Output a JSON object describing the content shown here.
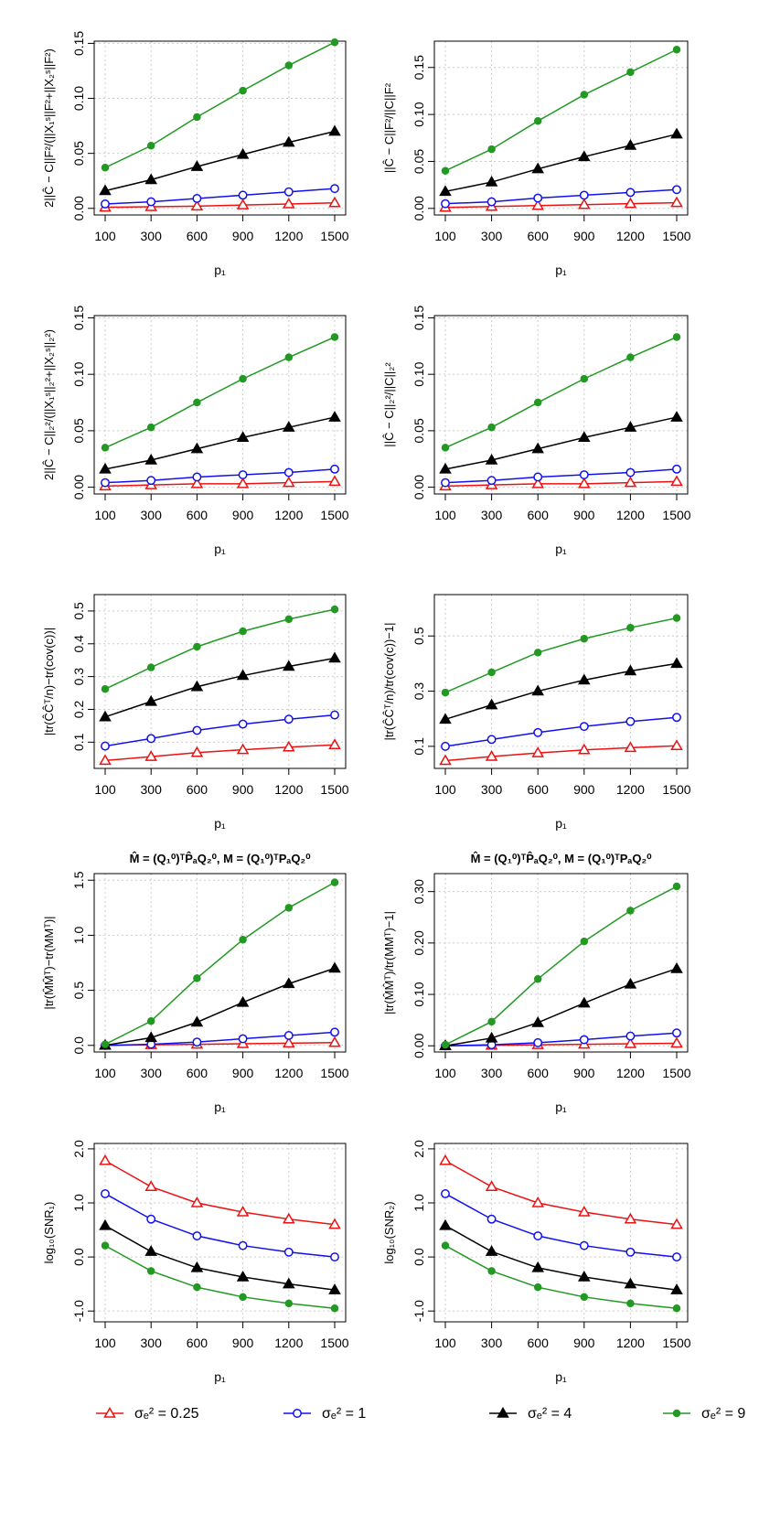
{
  "chart_data": [
    {
      "type": "line",
      "ylabel": "2||Ĉ − C||F²/(||X₁ˢ||F²+||X₂ˢ||F²)",
      "xlabel": "p₁",
      "categories": [
        "100",
        "300",
        "600",
        "900",
        "1200",
        "1500"
      ],
      "ylim": [
        -0.006,
        0.152
      ],
      "yticks": [
        {
          "value": 0,
          "label": "0.00"
        },
        {
          "value": 0.05,
          "label": "0.05"
        },
        {
          "value": 0.1,
          "label": "0.10"
        },
        {
          "value": 0.15,
          "label": "0.15"
        }
      ],
      "grid": true,
      "series": [
        {
          "values": [
            0.001,
            0.0015,
            0.002,
            0.003,
            0.004,
            0.005
          ]
        },
        {
          "values": [
            0.004,
            0.006,
            0.009,
            0.012,
            0.015,
            0.018
          ]
        },
        {
          "values": [
            0.016,
            0.026,
            0.038,
            0.049,
            0.06,
            0.07
          ]
        },
        {
          "values": [
            0.037,
            0.057,
            0.083,
            0.107,
            0.13,
            0.151
          ]
        }
      ]
    },
    {
      "type": "line",
      "ylabel": "||Ĉ − C||F²/||C||F²",
      "xlabel": "p₁",
      "categories": [
        "100",
        "300",
        "600",
        "900",
        "1200",
        "1500"
      ],
      "ylim": [
        -0.007,
        0.178
      ],
      "yticks": [
        {
          "value": 0,
          "label": "0.00"
        },
        {
          "value": 0.05,
          "label": "0.05"
        },
        {
          "value": 0.1,
          "label": "0.10"
        },
        {
          "value": 0.15,
          "label": "0.15"
        }
      ],
      "grid": true,
      "series": [
        {
          "values": [
            0.001,
            0.002,
            0.003,
            0.004,
            0.005,
            0.006
          ]
        },
        {
          "values": [
            0.005,
            0.007,
            0.011,
            0.014,
            0.017,
            0.02
          ]
        },
        {
          "values": [
            0.018,
            0.028,
            0.042,
            0.055,
            0.067,
            0.079
          ]
        },
        {
          "values": [
            0.04,
            0.063,
            0.093,
            0.121,
            0.145,
            0.169
          ]
        }
      ]
    },
    {
      "type": "line",
      "ylabel": "2||Ĉ − C||₂²/(||X₁ˢ||₂²+||X₂ˢ||₂²)",
      "xlabel": "p₁",
      "categories": [
        "100",
        "300",
        "600",
        "900",
        "1200",
        "1500"
      ],
      "ylim": [
        -0.006,
        0.152
      ],
      "yticks": [
        {
          "value": 0,
          "label": "0.00"
        },
        {
          "value": 0.05,
          "label": "0.05"
        },
        {
          "value": 0.1,
          "label": "0.10"
        },
        {
          "value": 0.15,
          "label": "0.15"
        }
      ],
      "grid": true,
      "series": [
        {
          "values": [
            0.001,
            0.002,
            0.003,
            0.003,
            0.004,
            0.005
          ]
        },
        {
          "values": [
            0.004,
            0.006,
            0.009,
            0.011,
            0.013,
            0.016
          ]
        },
        {
          "values": [
            0.016,
            0.024,
            0.034,
            0.044,
            0.053,
            0.062
          ]
        },
        {
          "values": [
            0.035,
            0.053,
            0.075,
            0.096,
            0.115,
            0.133
          ]
        }
      ]
    },
    {
      "type": "line",
      "ylabel": "||Ĉ − C||₂²/||C||₂²",
      "xlabel": "p₁",
      "categories": [
        "100",
        "300",
        "600",
        "900",
        "1200",
        "1500"
      ],
      "ylim": [
        -0.006,
        0.152
      ],
      "yticks": [
        {
          "value": 0,
          "label": "0.00"
        },
        {
          "value": 0.05,
          "label": "0.05"
        },
        {
          "value": 0.1,
          "label": "0.10"
        },
        {
          "value": 0.15,
          "label": "0.15"
        }
      ],
      "grid": true,
      "series": [
        {
          "values": [
            0.001,
            0.002,
            0.003,
            0.003,
            0.004,
            0.005
          ]
        },
        {
          "values": [
            0.004,
            0.006,
            0.009,
            0.011,
            0.013,
            0.016
          ]
        },
        {
          "values": [
            0.016,
            0.024,
            0.034,
            0.044,
            0.053,
            0.062
          ]
        },
        {
          "values": [
            0.035,
            0.053,
            0.075,
            0.096,
            0.115,
            0.133
          ]
        }
      ]
    },
    {
      "type": "line",
      "ylabel": "|tr(ĈĈᵀ/n)−tr(cov(c))|",
      "xlabel": "p₁",
      "categories": [
        "100",
        "300",
        "600",
        "900",
        "1200",
        "1500"
      ],
      "ylim": [
        0.02,
        0.55
      ],
      "yticks": [
        0.1,
        0.2,
        0.3,
        0.4,
        0.5
      ],
      "grid": true,
      "series": [
        {
          "values": [
            0.044,
            0.056,
            0.068,
            0.077,
            0.085,
            0.092
          ]
        },
        {
          "values": [
            0.088,
            0.111,
            0.136,
            0.155,
            0.17,
            0.183
          ]
        },
        {
          "values": [
            0.177,
            0.224,
            0.269,
            0.303,
            0.331,
            0.356
          ]
        },
        {
          "values": [
            0.262,
            0.328,
            0.391,
            0.438,
            0.475,
            0.505
          ]
        }
      ]
    },
    {
      "type": "line",
      "ylabel": "|tr(ĈĈᵀ/n)/tr(cov(c))−1|",
      "xlabel": "p₁",
      "categories": [
        "100",
        "300",
        "600",
        "900",
        "1200",
        "1500"
      ],
      "ylim": [
        0.02,
        0.65
      ],
      "yticks": [
        0.1,
        0.3,
        0.5
      ],
      "grid": true,
      "series": [
        {
          "values": [
            0.048,
            0.063,
            0.076,
            0.087,
            0.095,
            0.102
          ]
        },
        {
          "values": [
            0.1,
            0.125,
            0.15,
            0.172,
            0.19,
            0.205
          ]
        },
        {
          "values": [
            0.198,
            0.25,
            0.3,
            0.34,
            0.373,
            0.4
          ]
        },
        {
          "values": [
            0.295,
            0.368,
            0.44,
            0.49,
            0.53,
            0.565
          ]
        }
      ]
    },
    {
      "type": "line",
      "title": "M̂ = (Q₁⁰)ᵀP̂ₐQ₂⁰,  M = (Q₁⁰)ᵀPₐQ₂⁰",
      "ylabel": "|tr(M̂M̂ᵀ)−tr(MMᵀ)|",
      "xlabel": "p₁",
      "categories": [
        "100",
        "300",
        "600",
        "900",
        "1200",
        "1500"
      ],
      "ylim": [
        -0.06,
        1.56
      ],
      "yticks": [
        {
          "value": 0,
          "label": "0.0"
        },
        {
          "value": 0.5,
          "label": "0.5"
        },
        {
          "value": 1,
          "label": "1.0"
        },
        {
          "value": 1.5,
          "label": "1.5"
        }
      ],
      "grid": true,
      "series": [
        {
          "values": [
            0,
            0.005,
            0.01,
            0.015,
            0.02,
            0.025
          ]
        },
        {
          "values": [
            0,
            0.01,
            0.03,
            0.06,
            0.09,
            0.12
          ]
        },
        {
          "values": [
            0,
            0.07,
            0.21,
            0.39,
            0.56,
            0.7
          ]
        },
        {
          "values": [
            0.01,
            0.22,
            0.61,
            0.96,
            1.25,
            1.48
          ]
        }
      ]
    },
    {
      "type": "line",
      "title": "M̂ = (Q₁⁰)ᵀP̂ₐQ₂⁰,  M = (Q₁⁰)ᵀPₐQ₂⁰",
      "ylabel": "|tr(M̂M̂ᵀ)/tr(MMᵀ)−1|",
      "xlabel": "p₁",
      "categories": [
        "100",
        "300",
        "600",
        "900",
        "1200",
        "1500"
      ],
      "ylim": [
        -0.012,
        0.335
      ],
      "yticks": [
        {
          "value": 0,
          "label": "0.00"
        },
        {
          "value": 0.1,
          "label": "0.10"
        },
        {
          "value": 0.2,
          "label": "0.20"
        },
        {
          "value": 0.3,
          "label": "0.30"
        }
      ],
      "grid": true,
      "series": [
        {
          "values": [
            0,
            0.001,
            0.002,
            0.003,
            0.004,
            0.005
          ]
        },
        {
          "values": [
            0,
            0.002,
            0.006,
            0.012,
            0.019,
            0.025
          ]
        },
        {
          "values": [
            0,
            0.015,
            0.045,
            0.083,
            0.12,
            0.15
          ]
        },
        {
          "values": [
            0.002,
            0.047,
            0.13,
            0.203,
            0.263,
            0.31
          ]
        }
      ]
    },
    {
      "type": "line",
      "ylabel": "log₁₀(SNR₁)",
      "xlabel": "p₁",
      "categories": [
        "100",
        "300",
        "600",
        "900",
        "1200",
        "1500"
      ],
      "ylim": [
        -1.2,
        2.1
      ],
      "yticks": [
        {
          "value": -1,
          "label": "-1.0"
        },
        {
          "value": 0,
          "label": "0.0"
        },
        {
          "value": 1,
          "label": "1.0"
        },
        {
          "value": 2,
          "label": "2.0"
        }
      ],
      "grid": true,
      "series": [
        {
          "values": [
            1.78,
            1.3,
            1.0,
            0.83,
            0.7,
            0.6
          ]
        },
        {
          "values": [
            1.17,
            0.7,
            0.39,
            0.21,
            0.09,
            0.0
          ]
        },
        {
          "values": [
            0.58,
            0.1,
            -0.2,
            -0.37,
            -0.5,
            -0.61
          ]
        },
        {
          "values": [
            0.21,
            -0.26,
            -0.56,
            -0.74,
            -0.86,
            -0.95
          ]
        }
      ]
    },
    {
      "type": "line",
      "ylabel": "log₁₀(SNR₂)",
      "xlabel": "p₁",
      "categories": [
        "100",
        "300",
        "600",
        "900",
        "1200",
        "1500"
      ],
      "ylim": [
        -1.2,
        2.1
      ],
      "yticks": [
        {
          "value": -1,
          "label": "-1.0"
        },
        {
          "value": 0,
          "label": "0.0"
        },
        {
          "value": 1,
          "label": "1.0"
        },
        {
          "value": 2,
          "label": "2.0"
        }
      ],
      "grid": true,
      "series": [
        {
          "values": [
            1.78,
            1.3,
            1.0,
            0.83,
            0.7,
            0.6
          ]
        },
        {
          "values": [
            1.17,
            0.7,
            0.39,
            0.21,
            0.09,
            0.0
          ]
        },
        {
          "values": [
            0.58,
            0.1,
            -0.2,
            -0.37,
            -0.5,
            -0.61
          ]
        },
        {
          "values": [
            0.21,
            -0.26,
            -0.56,
            -0.74,
            -0.86,
            -0.95
          ]
        }
      ]
    }
  ],
  "legend": [
    {
      "name": "σₑ² = 0.25",
      "color": "#ee1111",
      "marker": "open-triangle"
    },
    {
      "name": "σₑ² = 1",
      "color": "#1111ee",
      "marker": "open-circle"
    },
    {
      "name": "σₑ² = 4",
      "color": "#000000",
      "marker": "filled-triangle"
    },
    {
      "name": "σₑ² = 9",
      "color": "#229922",
      "marker": "filled-circle"
    }
  ]
}
